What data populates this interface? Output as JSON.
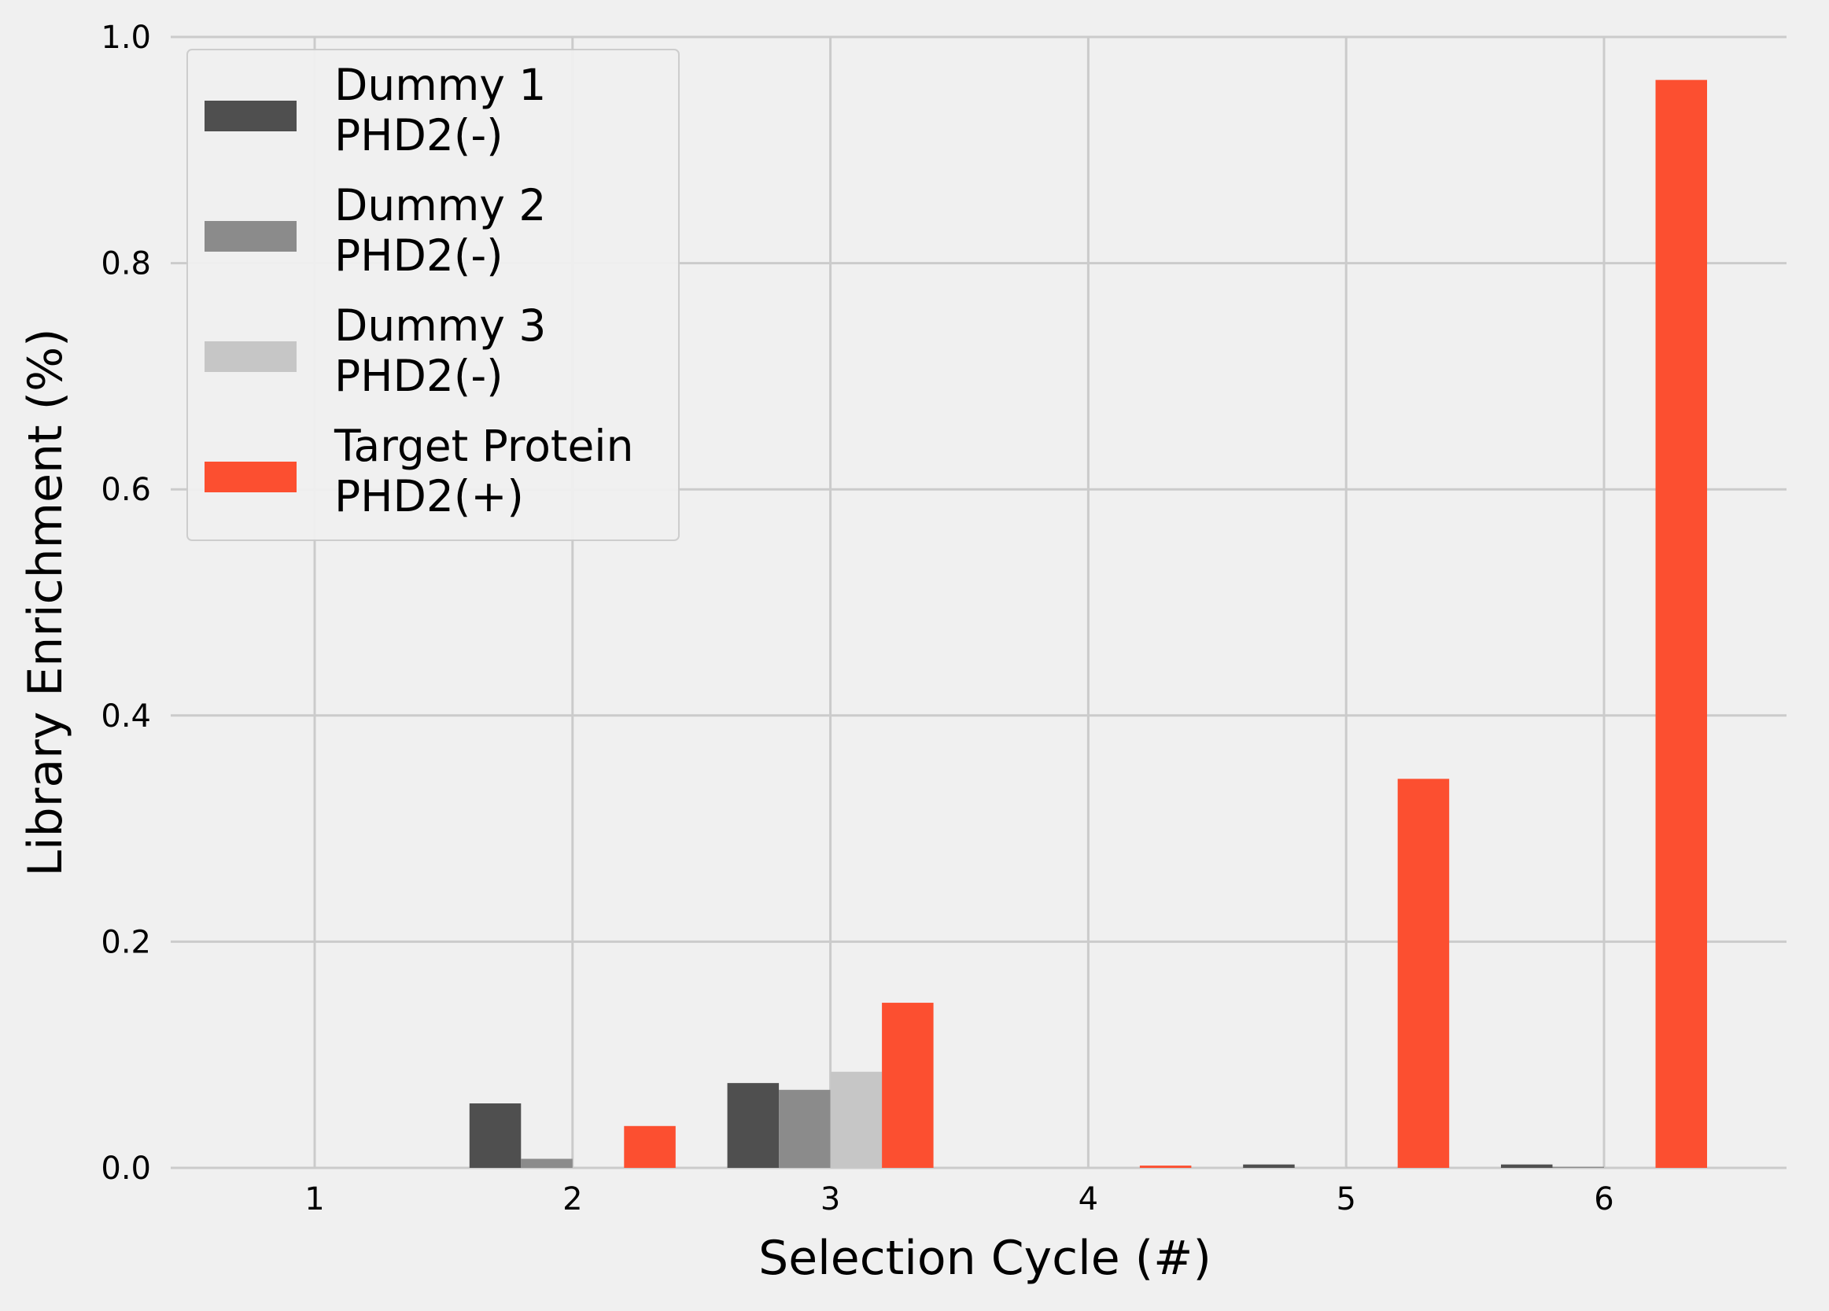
{
  "chart_data": {
    "type": "bar",
    "xlabel": "Selection Cycle (#)",
    "ylabel": "Library Enrichment (%)",
    "categories": [
      "1",
      "2",
      "3",
      "4",
      "5",
      "6"
    ],
    "ylim": [
      0,
      1.0
    ],
    "yticks": [
      "0.0",
      "0.2",
      "0.4",
      "0.6",
      "0.8",
      "1.0"
    ],
    "grid": true,
    "legend_position": "top-left",
    "series": [
      {
        "name": "Dummy 1\nPHD2(-)",
        "legend_lines": [
          "Dummy 1",
          "PHD2(-)"
        ],
        "color": "#4f4f4f",
        "values": [
          0,
          0.057,
          0.075,
          0,
          0.003,
          0.003
        ]
      },
      {
        "name": "Dummy 2\nPHD2(-)",
        "legend_lines": [
          "Dummy 2",
          "PHD2(-)"
        ],
        "color": "#8b8b8b",
        "values": [
          0,
          0.008,
          0.069,
          0,
          0,
          0.001
        ]
      },
      {
        "name": "Dummy 3\nPHD2(-)",
        "legend_lines": [
          "Dummy 3",
          "PHD2(-)"
        ],
        "color": "#c6c6c6",
        "values": [
          0,
          0,
          0.085,
          0,
          0.001,
          0
        ]
      },
      {
        "name": "Target Protein\nPHD2(+)",
        "legend_lines": [
          "Target Protein",
          "PHD2(+)"
        ],
        "color": "#fc4f30",
        "values": [
          0,
          0.037,
          0.146,
          0.002,
          0.344,
          0.962
        ]
      }
    ]
  }
}
